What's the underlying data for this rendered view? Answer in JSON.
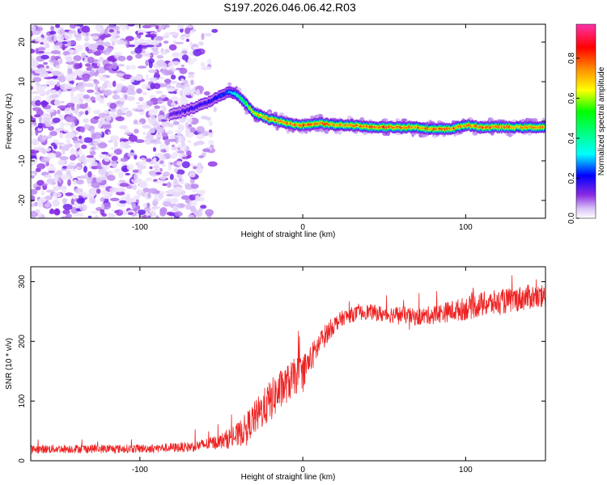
{
  "title": "S197.2026.046.06.42.R03",
  "colors": {
    "snr_line": "#ee2222",
    "axis": "#000000",
    "colorbar": [
      "#ffffff",
      "#b98cf0",
      "#8a2be2",
      "#0000ff",
      "#00ffff",
      "#00ff00",
      "#ffff00",
      "#ff8c00",
      "#ff0000",
      "#ff33aa"
    ]
  },
  "chart_data": [
    {
      "type": "heatmap",
      "title": "",
      "xlabel": "Height of straight line (km)",
      "ylabel": "Frequency (Hz)",
      "xlim": [
        -167,
        149
      ],
      "ylim": [
        -24.5,
        24.5
      ],
      "xticks": [
        -100,
        0,
        100
      ],
      "xtick_labels": [
        "-100",
        "0",
        "100"
      ],
      "yticks": [
        -20,
        -10,
        0,
        10,
        20
      ],
      "ytick_labels": [
        "-20",
        "-10",
        "0",
        "10",
        "20"
      ],
      "colorbar": {
        "label": "Normalized spectral amplitude",
        "range": [
          0,
          0.97
        ],
        "ticks": [
          0.0,
          0.2,
          0.4,
          0.6,
          0.8
        ],
        "tick_labels": [
          "0.0",
          "0.2",
          "0.4",
          "0.6",
          "0.8"
        ]
      },
      "ridge": {
        "x": [
          -82,
          -70,
          -60,
          -50,
          -45,
          -40,
          -35,
          -30,
          -20,
          -10,
          0,
          10,
          20,
          30,
          40,
          50,
          60,
          70,
          80,
          90,
          100,
          110,
          120,
          130,
          149
        ],
        "frequency": [
          1.5,
          3.0,
          4.5,
          6.5,
          7.5,
          6.5,
          4.5,
          2.0,
          0.5,
          -0.5,
          -1.0,
          -0.5,
          -1.0,
          -1.0,
          -1.5,
          -1.5,
          -1.5,
          -1.5,
          -2.0,
          -2.0,
          -1.0,
          -1.5,
          -1.5,
          -1.5,
          -1.5
        ],
        "peak_amplitude": [
          0.15,
          0.2,
          0.2,
          0.25,
          0.3,
          0.45,
          0.6,
          0.75,
          0.8,
          0.8,
          0.85,
          0.85,
          0.8,
          0.8,
          0.85,
          0.9,
          0.85,
          0.8,
          0.85,
          0.85,
          0.8,
          0.85,
          0.85,
          0.8,
          0.8
        ]
      },
      "noise_region": {
        "x_range": [
          -167,
          -50
        ],
        "amplitude": "0.0-0.15"
      }
    },
    {
      "type": "line",
      "title": "",
      "xlabel": "Height of straight line (km)",
      "ylabel": "SNR (10 * v/v)",
      "xlim": [
        -167,
        149
      ],
      "ylim": [
        0,
        325
      ],
      "xticks": [
        -100,
        0,
        100
      ],
      "xtick_labels": [
        "-100",
        "0",
        "100"
      ],
      "yticks": [
        0,
        100,
        200,
        300
      ],
      "ytick_labels": [
        "0",
        "100",
        "200",
        "300"
      ],
      "series": [
        {
          "name": "SNR",
          "x": [
            -167,
            -150,
            -130,
            -110,
            -90,
            -70,
            -60,
            -50,
            -45,
            -40,
            -35,
            -30,
            -25,
            -20,
            -15,
            -10,
            -5,
            0,
            5,
            10,
            15,
            20,
            25,
            30,
            40,
            50,
            60,
            70,
            80,
            90,
            100,
            110,
            120,
            130,
            140,
            149
          ],
          "values": [
            19,
            20,
            20,
            20,
            21,
            23,
            27,
            33,
            38,
            42,
            55,
            70,
            85,
            100,
            115,
            128,
            140,
            150,
            170,
            195,
            215,
            230,
            240,
            245,
            250,
            245,
            245,
            240,
            245,
            250,
            255,
            262,
            265,
            270,
            275,
            272
          ],
          "spread": [
            10,
            10,
            10,
            10,
            10,
            12,
            14,
            18,
            25,
            30,
            35,
            40,
            45,
            50,
            50,
            45,
            45,
            40,
            35,
            30,
            25,
            20,
            18,
            18,
            18,
            20,
            20,
            20,
            22,
            25,
            28,
            30,
            30,
            30,
            30,
            30
          ]
        }
      ]
    }
  ]
}
